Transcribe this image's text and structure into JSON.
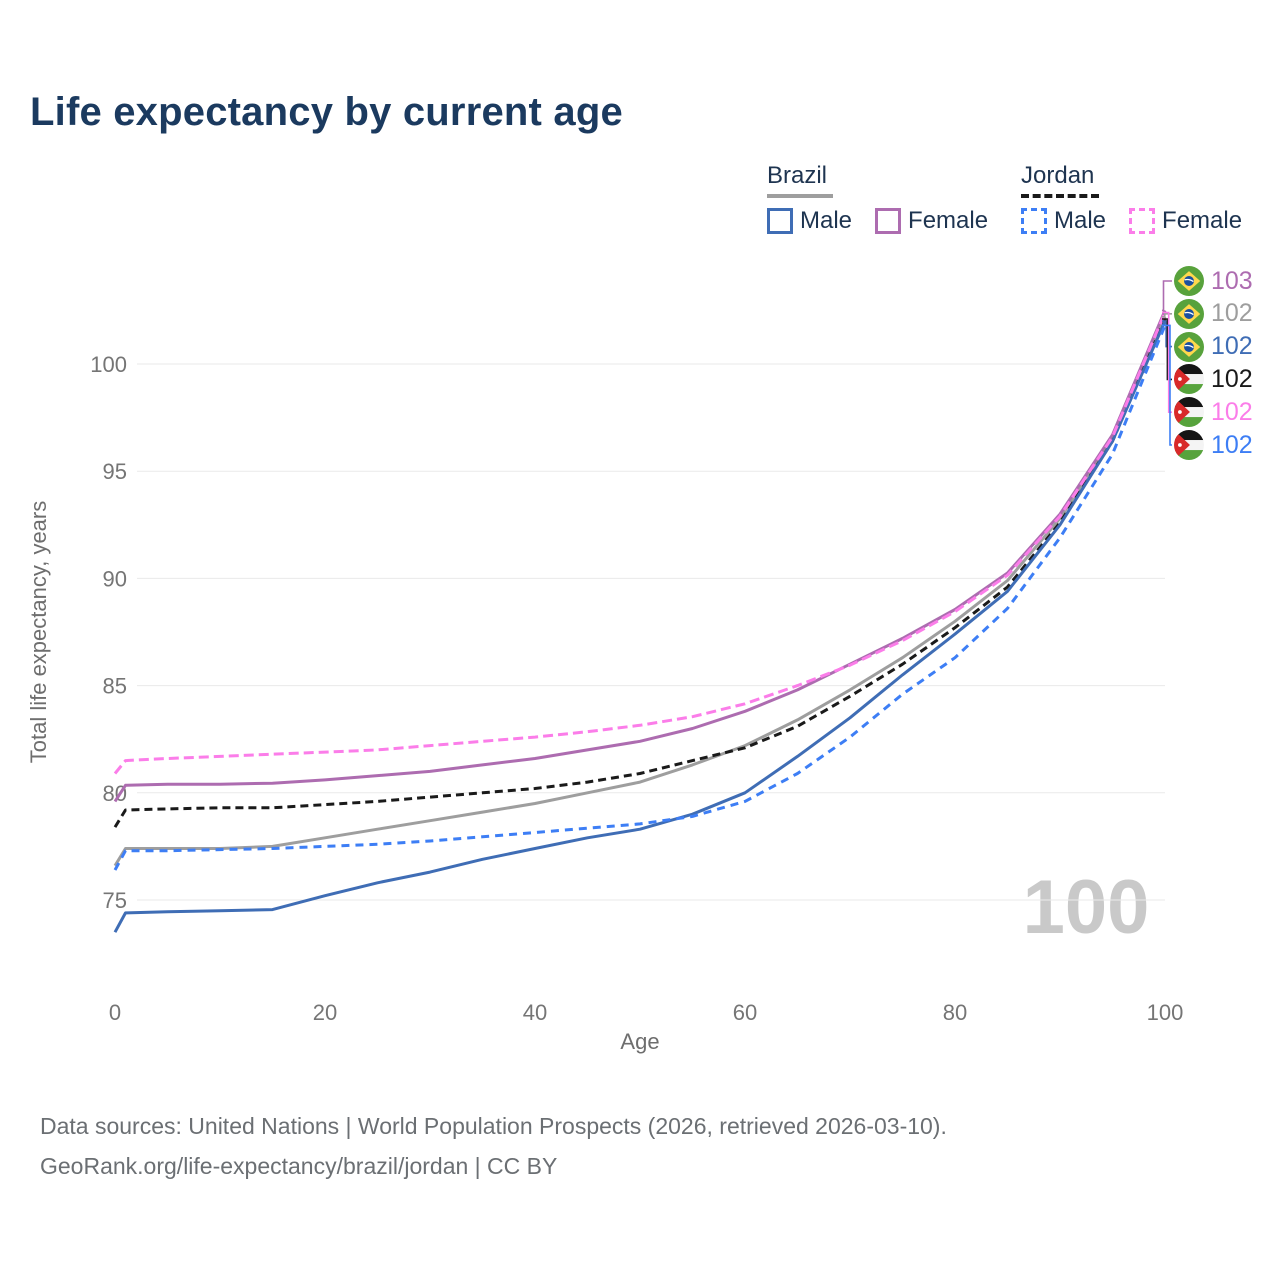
{
  "title": "Life expectancy by current age",
  "legend": {
    "brazil": {
      "label": "Brazil",
      "male": "Male",
      "female": "Female"
    },
    "jordan": {
      "label": "Jordan",
      "male": "Male",
      "female": "Female"
    }
  },
  "chart_data": {
    "type": "line",
    "title": "Life expectancy by current age",
    "xlabel": "Age",
    "ylabel": "Total life expectancy, years",
    "xticks": [
      0,
      20,
      40,
      60,
      80,
      100
    ],
    "yticks": [
      75,
      80,
      85,
      90,
      95,
      100
    ],
    "xlim": [
      0,
      100
    ],
    "ylim": [
      71.5,
      103.5
    ],
    "grid": true,
    "legend_position": "top-right",
    "watermark": "100",
    "ages": [
      0,
      1,
      5,
      10,
      15,
      20,
      25,
      30,
      35,
      40,
      45,
      50,
      55,
      60,
      65,
      70,
      75,
      80,
      85,
      90,
      95,
      100
    ],
    "series": [
      {
        "name": "Brazil Both sexes",
        "country": "Brazil",
        "sex": "Both",
        "color": "#9e9e9e",
        "dash": null,
        "values": [
          76.6,
          77.4,
          77.4,
          77.4,
          77.5,
          77.9,
          78.3,
          78.7,
          79.1,
          79.5,
          80.0,
          80.5,
          81.3,
          82.2,
          83.4,
          84.8,
          86.3,
          88.0,
          89.9,
          92.8,
          96.5,
          102.2
        ]
      },
      {
        "name": "Jordan Both sexes",
        "country": "Jordan",
        "sex": "Both",
        "color": "#1a1a1a",
        "dash": "8 5",
        "values": [
          78.4,
          79.2,
          79.25,
          79.3,
          79.3,
          79.45,
          79.6,
          79.8,
          80.0,
          80.2,
          80.5,
          80.9,
          81.5,
          82.1,
          83.1,
          84.5,
          86.0,
          87.7,
          89.6,
          92.6,
          96.4,
          102.1
        ]
      },
      {
        "name": "Brazil Male",
        "country": "Brazil",
        "sex": "Male",
        "color": "#3f6db5",
        "dash": null,
        "values": [
          73.5,
          74.4,
          74.45,
          74.5,
          74.55,
          75.2,
          75.8,
          76.3,
          76.9,
          77.4,
          77.9,
          78.3,
          79.0,
          80.0,
          81.7,
          83.5,
          85.5,
          87.4,
          89.4,
          92.5,
          96.4,
          102.0
        ]
      },
      {
        "name": "Jordan Male",
        "country": "Jordan",
        "sex": "Male",
        "color": "#3d7ef5",
        "dash": "8 6",
        "values": [
          76.4,
          77.3,
          77.3,
          77.35,
          77.4,
          77.5,
          77.6,
          77.75,
          77.95,
          78.15,
          78.35,
          78.55,
          78.9,
          79.6,
          80.9,
          82.6,
          84.6,
          86.3,
          88.6,
          91.9,
          95.8,
          101.8
        ]
      },
      {
        "name": "Brazil Female",
        "country": "Brazil",
        "sex": "Female",
        "color": "#ad6cb0",
        "dash": null,
        "values": [
          79.6,
          80.35,
          80.4,
          80.4,
          80.45,
          80.6,
          80.8,
          81.0,
          81.3,
          81.6,
          82.0,
          82.4,
          83.0,
          83.8,
          84.8,
          86.0,
          87.2,
          88.55,
          90.25,
          93.0,
          96.7,
          102.5
        ]
      },
      {
        "name": "Jordan Female",
        "country": "Jordan",
        "sex": "Female",
        "color": "#fb7de9",
        "dash": "10 5",
        "values": [
          80.9,
          81.5,
          81.6,
          81.7,
          81.8,
          81.9,
          82.0,
          82.2,
          82.4,
          82.6,
          82.85,
          83.15,
          83.55,
          84.15,
          85.0,
          85.95,
          87.1,
          88.45,
          90.15,
          92.9,
          96.6,
          102.4
        ]
      }
    ],
    "end_labels": [
      {
        "flag": "brazil",
        "value": "103",
        "series": "Brazil Female",
        "color": "#ad6cb0"
      },
      {
        "flag": "brazil",
        "value": "102",
        "series": "Brazil Both sexes",
        "color": "#9e9e9e"
      },
      {
        "flag": "brazil",
        "value": "102",
        "series": "Brazil Male",
        "color": "#3f6db5"
      },
      {
        "flag": "jordan",
        "value": "102",
        "series": "Jordan Both sexes",
        "color": "#1a1a1a"
      },
      {
        "flag": "jordan",
        "value": "102",
        "series": "Jordan Female",
        "color": "#fb7de9"
      },
      {
        "flag": "jordan",
        "value": "102",
        "series": "Jordan Male",
        "color": "#3d7ef5"
      }
    ]
  },
  "colors": {
    "title_text": "#1b3a5f",
    "legend_text": "#1e3450",
    "axis_text": "#757575",
    "axis_title_text": "#6e6e6e",
    "gridline": "#eaeaea",
    "watermark": "#c9c9c9",
    "footer_text": "#6b6f73",
    "legend_underline_brazil": "#9e9e9e",
    "legend_underline_jordan": "#1a1a1a"
  },
  "footer": {
    "line1": "Data sources: United Nations | World Population Prospects (2026, retrieved 2026-03-10).",
    "line2": "GeoRank.org/life-expectancy/brazil/jordan | CC BY"
  }
}
